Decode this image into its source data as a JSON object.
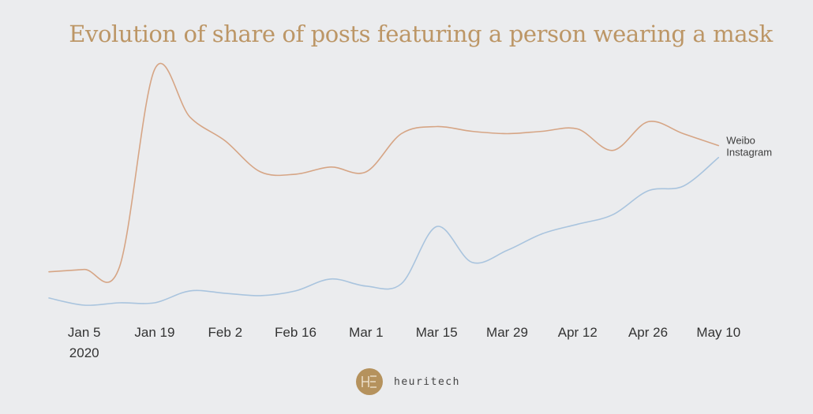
{
  "chart_data": {
    "type": "line",
    "title": "Evolution of share of posts featuring a person wearing a mask",
    "xlabel": "",
    "ylabel": "",
    "x_ticks": [
      {
        "label": "Jan 5",
        "sublabel": "2020",
        "date": "2020-01-05"
      },
      {
        "label": "Jan 19",
        "sublabel": "",
        "date": "2020-01-19"
      },
      {
        "label": "Feb 2",
        "sublabel": "",
        "date": "2020-02-02"
      },
      {
        "label": "Feb 16",
        "sublabel": "",
        "date": "2020-02-16"
      },
      {
        "label": "Mar 1",
        "sublabel": "",
        "date": "2020-03-01"
      },
      {
        "label": "Mar 15",
        "sublabel": "",
        "date": "2020-03-15"
      },
      {
        "label": "Mar 29",
        "sublabel": "",
        "date": "2020-03-29"
      },
      {
        "label": "Apr 12",
        "sublabel": "",
        "date": "2020-04-12"
      },
      {
        "label": "Apr 26",
        "sublabel": "",
        "date": "2020-04-26"
      },
      {
        "label": "May 10",
        "sublabel": "",
        "date": "2020-05-10"
      }
    ],
    "x": [
      "2019-12-29",
      "2020-01-05",
      "2020-01-12",
      "2020-01-19",
      "2020-01-26",
      "2020-02-02",
      "2020-02-09",
      "2020-02-16",
      "2020-02-23",
      "2020-03-01",
      "2020-03-08",
      "2020-03-15",
      "2020-03-22",
      "2020-03-29",
      "2020-04-05",
      "2020-04-12",
      "2020-04-19",
      "2020-04-26",
      "2020-05-03",
      "2020-05-10",
      "2020-05-17"
    ],
    "y_axis_visible": false,
    "ylim": [
      0,
      100
    ],
    "grid": false,
    "legend": "direct labels at line ends (right)",
    "series": [
      {
        "name": "Weibo",
        "color": "#d6a585",
        "values": [
          15,
          16,
          17,
          100,
          80,
          70,
          57,
          56,
          59,
          57,
          73,
          76,
          74,
          73,
          74,
          75,
          66,
          78,
          73,
          68,
          null
        ]
      },
      {
        "name": "Instagram",
        "color": "#a9c4de",
        "values": [
          4,
          1,
          2,
          2,
          7,
          6,
          5,
          7,
          12,
          9,
          10,
          34,
          19,
          24,
          31,
          35,
          39,
          49,
          51,
          63,
          null
        ]
      }
    ]
  },
  "brand": {
    "name": "heuritech",
    "logo_icon": "he-monogram-icon",
    "logo_color": "#b5925d"
  }
}
